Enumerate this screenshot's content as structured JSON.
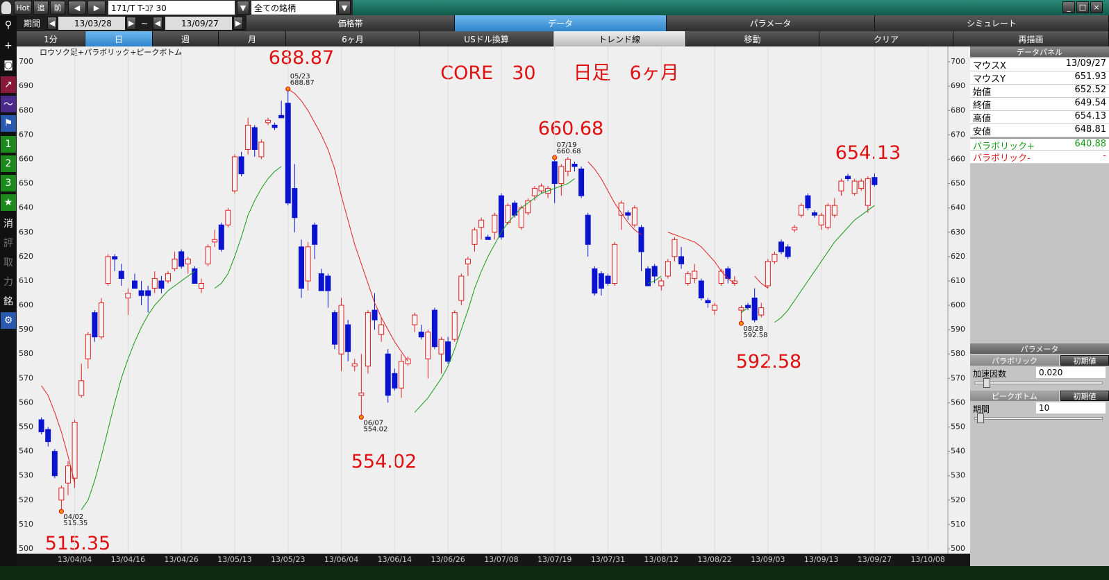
{
  "ui": {
    "toolbar": {
      "hot": "Hot",
      "follow": "追",
      "prev": "前",
      "symbol": "171/T T-ｺｱ 30",
      "market": "全ての銘柄"
    },
    "period": {
      "label": "期間",
      "from": "13/03/28",
      "tilde": "~",
      "to": "13/09/27"
    },
    "tabs": [
      "価格帯",
      "データ",
      "パラメータ",
      "シミュレート"
    ],
    "buttons": [
      "1分",
      "日",
      "週",
      "月",
      "6ヶ月",
      "USドル換算",
      "トレンド線",
      "移動",
      "クリア",
      "再描画"
    ],
    "side_tools": [
      "1",
      "2",
      "3",
      "★",
      "消",
      "評",
      "取",
      "力",
      "銘"
    ],
    "data_panel": {
      "title": "データパネル",
      "rows": [
        {
          "label": "マウスX",
          "value": "13/09/27"
        },
        {
          "label": "マウスY",
          "value": 651.93
        },
        {
          "label": "始値",
          "value": 652.52
        },
        {
          "label": "終値",
          "value": 649.54
        },
        {
          "label": "高値",
          "value": 654.13
        },
        {
          "label": "安値",
          "value": 648.81
        },
        {
          "label": "パラボリック+",
          "value": 640.88
        },
        {
          "label": "パラボリック-",
          "value": "-"
        }
      ]
    },
    "param_panel": {
      "title": "パラメータ",
      "reset": "初期値",
      "parabolic": {
        "title": "パラボリック",
        "param": "加速因数",
        "value": "0.020"
      },
      "peak_bottom": {
        "title": "ピークボトム",
        "param": "期間",
        "value": 10
      }
    }
  },
  "chart_data": {
    "type": "candlestick",
    "title": "ロウソク足+パラボリック+ピークボトム",
    "subtitle": "CORE　30　　日足　6ヶ月",
    "annotations": [
      688.87,
      660.68,
      654.13,
      554.02,
      592.58,
      515.35
    ],
    "up_color": "#e02020",
    "down_color": "#0a14d0",
    "xlim": [
      -1,
      136
    ],
    "ylim": [
      498,
      706.3
    ],
    "yticks": [
      500,
      510,
      520,
      530,
      540,
      550,
      560,
      570,
      580,
      590,
      600,
      610,
      620,
      630,
      640,
      650,
      660,
      670,
      680,
      690,
      700
    ],
    "xticks": [
      {
        "value": 5,
        "label": "13/04/04"
      },
      {
        "value": 13,
        "label": "13/04/16"
      },
      {
        "value": 21,
        "label": "13/04/26"
      },
      {
        "value": 29,
        "label": "13/05/13"
      },
      {
        "value": 37,
        "label": "13/05/23"
      },
      {
        "value": 45,
        "label": "13/06/04"
      },
      {
        "value": 53,
        "label": "13/06/14"
      },
      {
        "value": 61,
        "label": "13/06/26"
      },
      {
        "value": 69,
        "label": "13/07/08"
      },
      {
        "value": 77,
        "label": "13/07/19"
      },
      {
        "value": 85,
        "label": "13/07/31"
      },
      {
        "value": 93,
        "label": "13/08/12"
      },
      {
        "value": 101,
        "label": "13/08/22"
      },
      {
        "value": 109,
        "label": "13/09/03"
      },
      {
        "value": 117,
        "label": "13/09/13"
      },
      {
        "value": 125,
        "label": "13/09/27"
      },
      {
        "value": 133,
        "label": "13/10/08"
      }
    ],
    "xgrid": true,
    "open": [
      553,
      549,
      540,
      520,
      527,
      529,
      563,
      578,
      597,
      587,
      609,
      620,
      614,
      603,
      610,
      606,
      606,
      607,
      610,
      610,
      615,
      622,
      617,
      615,
      607,
      617,
      626,
      633,
      633,
      647,
      661,
      664,
      673,
      661,
      675,
      674,
      678,
      683,
      648,
      624,
      610,
      633,
      613,
      612,
      597,
      580,
      592,
      575,
      563,
      575,
      598,
      588,
      580,
      572,
      566,
      576,
      592,
      589,
      578,
      598,
      580,
      585,
      586,
      602,
      617,
      625,
      632,
      628,
      630,
      645,
      634,
      642,
      632,
      638,
      645,
      647,
      646,
      659,
      650,
      655,
      658,
      656,
      637,
      615,
      613,
      612,
      609,
      637,
      638,
      633,
      632,
      615,
      616,
      608,
      612,
      620,
      620,
      609,
      611,
      610,
      602,
      598,
      609,
      615,
      609,
      598,
      600,
      603,
      596,
      608,
      618,
      626,
      624,
      631,
      637,
      645,
      638,
      633,
      632,
      637,
      647,
      653,
      646,
      648,
      641,
      652.52
    ],
    "high": [
      554,
      550,
      541,
      526,
      536,
      553,
      576,
      589,
      598,
      603,
      621,
      621,
      617,
      607,
      613,
      610,
      608,
      614,
      612,
      614,
      622,
      623,
      620,
      616,
      611,
      625,
      631,
      634,
      640,
      662,
      663,
      677,
      674,
      668,
      677,
      675,
      684,
      688.87,
      658,
      627,
      626,
      634,
      615,
      613,
      598,
      603,
      594,
      578,
      580,
      598,
      605,
      595,
      582,
      574,
      580,
      579,
      597,
      592,
      590,
      599,
      587,
      587,
      598,
      613,
      620,
      632,
      636,
      629,
      638,
      646,
      642,
      643,
      641,
      644,
      649,
      650,
      649,
      660.68,
      658,
      661,
      659,
      657,
      638,
      616,
      614,
      613,
      626,
      643,
      639,
      641,
      633,
      616,
      617,
      611,
      619,
      628,
      624,
      614,
      617,
      611,
      603,
      601,
      615,
      616,
      612,
      600,
      601,
      607,
      601,
      619,
      622,
      627,
      625,
      633,
      642,
      646,
      639,
      638,
      642,
      644,
      652,
      654,
      652,
      652,
      653,
      654.13
    ],
    "low": [
      547,
      542,
      529,
      515.35,
      522,
      525,
      562,
      574,
      585,
      586,
      608,
      614,
      608,
      596,
      607,
      600,
      597,
      605,
      605,
      609,
      614,
      615,
      613,
      609,
      605,
      616,
      624,
      622,
      632,
      646,
      653,
      662,
      661,
      660,
      674,
      672,
      677,
      641,
      630,
      603,
      606,
      619,
      606,
      599,
      582,
      573,
      577,
      573,
      554.02,
      572,
      590,
      585,
      560,
      565,
      562,
      575,
      589,
      586,
      570,
      582,
      572,
      576,
      585,
      600,
      612,
      622,
      627,
      627,
      627,
      627,
      633,
      636,
      631,
      637,
      643,
      646,
      644,
      642,
      645,
      653,
      655,
      644,
      620,
      604,
      604,
      608,
      608,
      631,
      635,
      632,
      614,
      608,
      609,
      606,
      611,
      618,
      615,
      608,
      609,
      602,
      599,
      596,
      608,
      609,
      608,
      592.58,
      598,
      593,
      595,
      607,
      617,
      621,
      619,
      630,
      636,
      639,
      636,
      631,
      631,
      636,
      645,
      651,
      645,
      647,
      638,
      648.81
    ],
    "close": [
      548,
      544,
      530,
      525,
      534,
      552,
      569,
      588,
      587,
      601,
      620,
      619,
      611,
      605,
      607,
      604,
      604,
      611,
      607,
      613,
      619,
      616,
      619,
      609,
      609,
      624,
      627,
      623,
      639,
      661,
      654,
      674,
      664,
      667,
      676,
      673,
      677,
      642,
      636,
      607,
      624,
      625,
      606,
      606,
      584,
      600,
      581,
      576,
      564,
      597,
      594,
      592,
      563,
      566,
      577,
      578,
      596,
      587,
      589,
      583,
      586,
      577,
      597,
      612,
      619,
      631,
      635,
      627,
      637,
      628,
      641,
      637,
      640,
      643,
      648,
      649,
      648,
      650,
      657,
      660,
      657,
      645,
      625,
      605,
      607,
      609,
      625,
      642,
      637,
      640,
      622,
      608,
      612,
      610,
      618,
      627,
      617,
      613,
      614,
      603,
      601,
      600,
      614,
      611,
      610,
      599,
      599,
      594,
      599,
      618,
      621,
      622,
      620,
      632,
      641,
      640,
      637,
      637,
      641,
      641,
      651,
      652,
      651,
      651,
      652,
      649.54
    ],
    "sar_plus": {
      "color": "#139a13",
      "segments": [
        {
          "x": [
            6,
            7,
            8,
            9,
            10,
            11,
            12,
            13,
            14,
            15,
            16,
            17,
            18,
            19,
            20,
            21,
            22,
            23
          ],
          "values": [
            516,
            520,
            528,
            538,
            549,
            560,
            570,
            578,
            585,
            591,
            596,
            600,
            603,
            606,
            608,
            610,
            612,
            614
          ]
        },
        {
          "x": [
            26,
            27,
            28,
            29,
            30,
            31,
            32,
            33,
            34,
            35,
            36
          ],
          "values": [
            607,
            609,
            613,
            620,
            628,
            637,
            643,
            648,
            652,
            655,
            657
          ]
        },
        {
          "x": [
            56,
            57,
            58,
            59,
            60,
            61,
            62,
            63,
            64,
            65,
            66,
            67,
            68,
            69,
            70,
            71,
            72,
            73,
            74,
            75,
            76,
            77,
            78,
            79,
            80
          ],
          "values": [
            556,
            559,
            562,
            566,
            570,
            575,
            582,
            590,
            598,
            607,
            614,
            620,
            625,
            630,
            634,
            637,
            640,
            642,
            644,
            646,
            647,
            648,
            649,
            650,
            652
          ]
        },
        {
          "x": [
            91,
            92,
            93
          ],
          "values": [
            609,
            610,
            612
          ]
        },
        {
          "x": [
            105,
            106
          ],
          "values": [
            597,
            599
          ]
        },
        {
          "x": [
            110,
            111,
            112,
            113,
            114,
            115,
            116,
            117,
            118,
            119,
            120,
            121,
            122,
            123,
            124,
            125
          ],
          "values": [
            593,
            595,
            598,
            602,
            606,
            610,
            614,
            618,
            622,
            626,
            629,
            632,
            635,
            637,
            639,
            641
          ]
        }
      ]
    },
    "sar_minus": {
      "color": "#e02020",
      "segments": [
        {
          "x": [
            0,
            1,
            2,
            3,
            4,
            5
          ],
          "values": [
            567,
            563,
            556,
            548,
            538,
            527
          ]
        },
        {
          "x": [
            37,
            38,
            39,
            40,
            41,
            42,
            43,
            44,
            45,
            46,
            47,
            48,
            49,
            50,
            51,
            52,
            53,
            54,
            55
          ],
          "values": [
            688.87,
            687,
            684,
            680,
            675,
            670,
            664,
            656,
            645,
            635,
            625,
            617,
            609,
            601,
            595,
            590,
            585,
            581,
            577
          ]
        },
        {
          "x": [
            82,
            83,
            84,
            85,
            86,
            87,
            88,
            89,
            90
          ],
          "values": [
            659,
            656,
            652,
            647,
            642,
            638,
            634,
            631,
            629
          ]
        },
        {
          "x": [
            94,
            95,
            96,
            97,
            98,
            99,
            100,
            101,
            102,
            103,
            104
          ],
          "values": [
            630,
            629,
            628,
            627,
            626,
            624,
            621,
            618,
            614,
            611,
            609
          ]
        },
        {
          "x": [
            107,
            108,
            109
          ],
          "values": [
            612,
            609,
            607
          ]
        }
      ]
    },
    "peaks": [
      {
        "x": 3,
        "date": "04/02",
        "value": 515.35,
        "kind": "bottom"
      },
      {
        "x": 37,
        "date": "05/23",
        "value": 688.87,
        "kind": "peak"
      },
      {
        "x": 48,
        "date": "06/07",
        "value": 554.02,
        "kind": "bottom"
      },
      {
        "x": 77,
        "date": "07/19",
        "value": 660.68,
        "kind": "peak"
      },
      {
        "x": 105,
        "date": "08/28",
        "value": 592.58,
        "kind": "bottom"
      }
    ],
    "peak_color": "#ff9800"
  }
}
